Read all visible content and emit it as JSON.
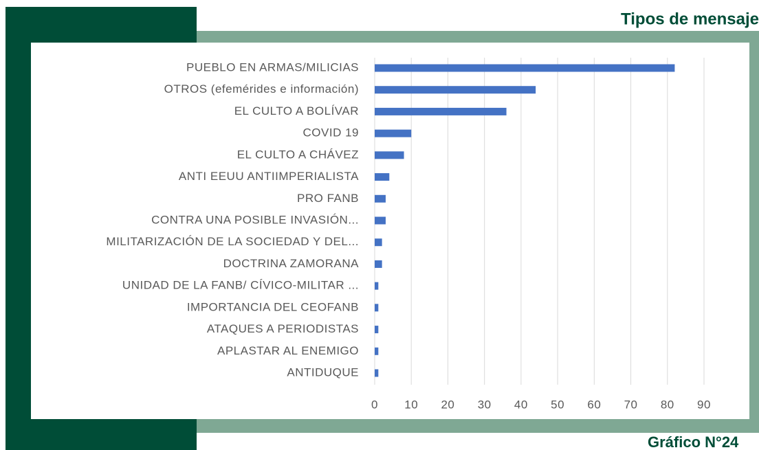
{
  "chart_data": {
    "type": "hbar",
    "title": "Tipos de mensaje",
    "categories": [
      "PUEBLO EN ARMAS/MILICIAS",
      "OTROS (efemérides e información)",
      "EL CULTO A BOLÍVAR",
      "COVID 19",
      "EL CULTO A CHÁVEZ",
      "ANTI EEUU ANTIIMPERIALISTA",
      "PRO FANB",
      "CONTRA UNA POSIBLE INVASIÓN...",
      "MILITARIZACIÓN DE LA SOCIEDAD Y DEL...",
      "DOCTRINA ZAMORANA",
      "UNIDAD DE LA FANB/ CÍVICO-MILITAR ...",
      "IMPORTANCIA DEL CEOFANB",
      "ATAQUES A PERIODISTAS",
      "APLASTAR AL ENEMIGO",
      "ANTIDUQUE"
    ],
    "values": [
      82,
      44,
      36,
      10,
      8,
      4,
      3,
      3,
      2,
      2,
      1,
      1,
      1,
      1,
      1
    ],
    "color": "#4472c4",
    "xlim": [
      0,
      90
    ],
    "xticks": [
      0,
      10,
      20,
      30,
      40,
      50,
      60,
      70,
      80,
      90
    ],
    "grid": true
  },
  "caption": "Gráfico N°24"
}
